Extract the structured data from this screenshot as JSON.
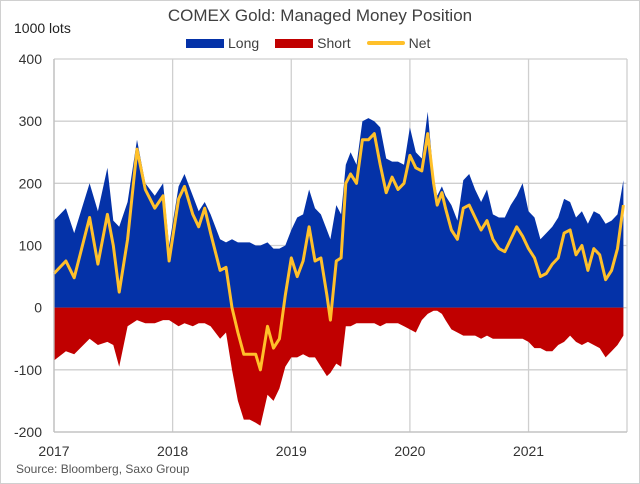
{
  "chart_data": {
    "type": "area",
    "title": "COMEX Gold: Managed Money Position",
    "ylabel": "1000 lots",
    "xlabel": "",
    "ylim": [
      -200,
      400
    ],
    "xlim": [
      2017,
      2021.83
    ],
    "yticks": [
      400,
      300,
      200,
      100,
      0,
      -100,
      -200
    ],
    "ytick_labels": [
      "400",
      "300",
      "200",
      "100",
      "0",
      "-100",
      "-200"
    ],
    "xticks": [
      2017,
      2018,
      2019,
      2020,
      2021
    ],
    "xtick_labels": [
      "2017",
      "2018",
      "2019",
      "2020",
      "2021"
    ],
    "grid": true,
    "legend_placement": "top-center",
    "source": "Source:  Bloomberg,  Saxo Group",
    "x": [
      2017.0,
      2017.1,
      2017.17,
      2017.3,
      2017.37,
      2017.45,
      2017.5,
      2017.55,
      2017.62,
      2017.7,
      2017.77,
      2017.85,
      2017.92,
      2017.97,
      2018.05,
      2018.1,
      2018.17,
      2018.22,
      2018.27,
      2018.32,
      2018.4,
      2018.45,
      2018.5,
      2018.55,
      2018.6,
      2018.65,
      2018.7,
      2018.74,
      2018.8,
      2018.85,
      2018.9,
      2018.95,
      2019.0,
      2019.05,
      2019.1,
      2019.15,
      2019.2,
      2019.25,
      2019.3,
      2019.33,
      2019.38,
      2019.42,
      2019.46,
      2019.5,
      2019.55,
      2019.6,
      2019.65,
      2019.7,
      2019.75,
      2019.8,
      2019.85,
      2019.9,
      2019.95,
      2020.0,
      2020.05,
      2020.1,
      2020.15,
      2020.2,
      2020.23,
      2020.27,
      2020.3,
      2020.35,
      2020.4,
      2020.45,
      2020.5,
      2020.55,
      2020.6,
      2020.65,
      2020.7,
      2020.75,
      2020.8,
      2020.85,
      2020.9,
      2020.95,
      2021.0,
      2021.05,
      2021.1,
      2021.15,
      2021.2,
      2021.25,
      2021.3,
      2021.35,
      2021.4,
      2021.45,
      2021.5,
      2021.55,
      2021.6,
      2021.65,
      2021.7,
      2021.75,
      2021.8
    ],
    "series": [
      {
        "name": "Long",
        "color": "#0432a8",
        "values": [
          140,
          160,
          120,
          200,
          155,
          225,
          140,
          130,
          170,
          270,
          200,
          180,
          200,
          100,
          195,
          215,
          180,
          155,
          170,
          150,
          110,
          105,
          110,
          105,
          105,
          105,
          100,
          100,
          105,
          95,
          95,
          100,
          125,
          145,
          150,
          190,
          160,
          150,
          125,
          110,
          165,
          150,
          230,
          250,
          230,
          300,
          305,
          300,
          290,
          240,
          235,
          235,
          230,
          290,
          250,
          240,
          315,
          210,
          180,
          195,
          180,
          165,
          140,
          205,
          215,
          190,
          170,
          190,
          150,
          145,
          145,
          165,
          180,
          200,
          155,
          145,
          110,
          120,
          130,
          145,
          175,
          170,
          145,
          155,
          135,
          155,
          150,
          135,
          140,
          150,
          205
        ]
      },
      {
        "name": "Short",
        "color": "#c00000",
        "values": [
          -85,
          -70,
          -75,
          -50,
          -60,
          -55,
          -60,
          -95,
          -30,
          -20,
          -25,
          -25,
          -20,
          -20,
          -30,
          -25,
          -30,
          -25,
          -25,
          -30,
          -50,
          -40,
          -100,
          -150,
          -180,
          -180,
          -185,
          -190,
          -140,
          -150,
          -130,
          -95,
          -80,
          -80,
          -75,
          -80,
          -80,
          -95,
          -110,
          -105,
          -90,
          -95,
          -30,
          -30,
          -25,
          -25,
          -25,
          -25,
          -30,
          -25,
          -25,
          -25,
          -30,
          -35,
          -40,
          -20,
          -10,
          -5,
          -5,
          -10,
          -20,
          -35,
          -40,
          -45,
          -45,
          -45,
          -50,
          -45,
          -50,
          -50,
          -50,
          -50,
          -50,
          -50,
          -55,
          -65,
          -65,
          -70,
          -70,
          -60,
          -55,
          -45,
          -55,
          -60,
          -55,
          -60,
          -65,
          -80,
          -70,
          -60,
          -45
        ]
      },
      {
        "name": "Net",
        "color": "#ffc02a",
        "values": [
          55,
          75,
          48,
          145,
          70,
          150,
          100,
          25,
          110,
          255,
          190,
          160,
          180,
          75,
          175,
          195,
          150,
          130,
          160,
          120,
          60,
          65,
          0,
          -40,
          -75,
          -75,
          -75,
          -100,
          -30,
          -65,
          -50,
          20,
          80,
          50,
          75,
          130,
          75,
          80,
          20,
          -20,
          75,
          80,
          200,
          215,
          200,
          270,
          270,
          280,
          230,
          185,
          210,
          190,
          200,
          245,
          225,
          220,
          280,
          200,
          165,
          185,
          160,
          125,
          110,
          160,
          165,
          145,
          125,
          140,
          110,
          95,
          90,
          110,
          130,
          115,
          95,
          80,
          50,
          55,
          70,
          80,
          120,
          125,
          85,
          100,
          60,
          95,
          85,
          45,
          60,
          95,
          165
        ]
      }
    ]
  }
}
